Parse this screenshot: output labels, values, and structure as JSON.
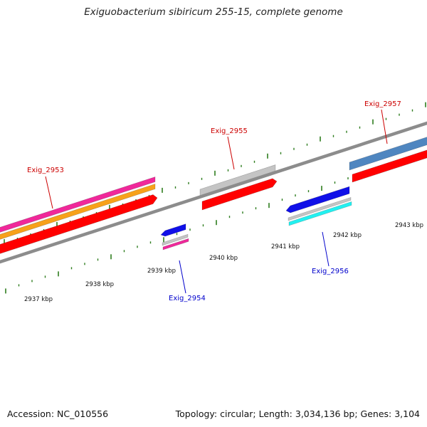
{
  "title": "Exiguobacterium sibiricum 255-15, complete genome",
  "accession_text": "Accession: NC_010556",
  "summary_text": "Topology: circular; Length: 3,034,136 bp; Genes: 3,104",
  "colors": {
    "backbone": "#8c8c8c",
    "tick": "#2e7d1e",
    "forward_label": "#cc0000",
    "reverse_label": "#0000cc",
    "cds": "#ff0000",
    "gray": "#c4c4c4",
    "magenta": "#f0289a",
    "orange": "#f7a11a",
    "blue": "#1010e8",
    "cyan": "#22f0f0",
    "steel": "#4f86c0"
  },
  "scale": {
    "labels": [
      "2937 kbp",
      "2938 kbp",
      "2939 kbp",
      "2940 kbp",
      "2941 kbp",
      "2942 kbp",
      "2943 kbp"
    ]
  },
  "genes": [
    {
      "id": "Exig_2953",
      "strand": "forward"
    },
    {
      "id": "Exig_2954",
      "strand": "reverse"
    },
    {
      "id": "Exig_2955",
      "strand": "forward"
    },
    {
      "id": "Exig_2956",
      "strand": "reverse"
    },
    {
      "id": "Exig_2957",
      "strand": "forward"
    }
  ]
}
